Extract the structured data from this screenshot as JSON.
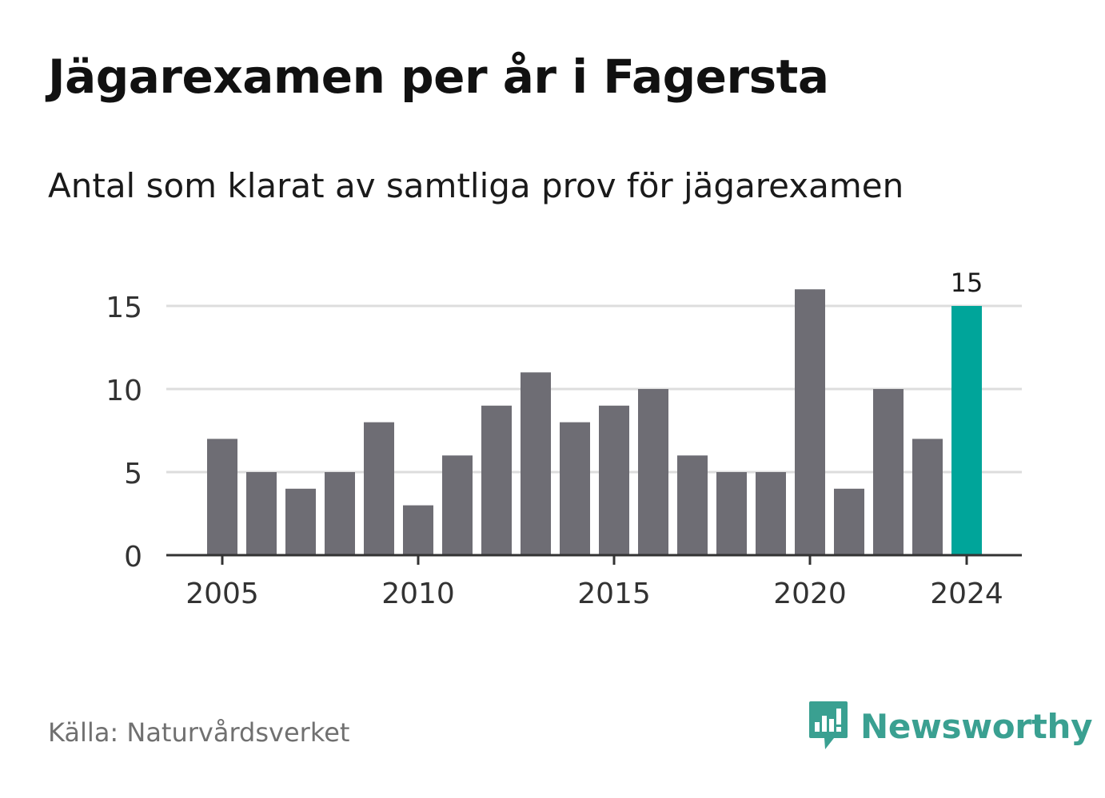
{
  "title": "Jägarexamen per år i Fagersta",
  "subtitle": "Antal som klarat av samtliga prov för jägarexamen",
  "source": "Källa: Naturvårdsverket",
  "brand": {
    "name": "Newsworthy",
    "icon": "newsworthy-chart-bubble-icon"
  },
  "colors": {
    "bar": "#6e6d74",
    "highlight": "#00a59a",
    "grid": "#dddddd",
    "axis": "#333333",
    "brand": "#3aa091"
  },
  "chart_data": {
    "type": "bar",
    "categories": [
      2005,
      2006,
      2007,
      2008,
      2009,
      2010,
      2011,
      2012,
      2013,
      2014,
      2015,
      2016,
      2017,
      2018,
      2019,
      2020,
      2021,
      2022,
      2023,
      2024
    ],
    "values": [
      7,
      5,
      4,
      5,
      8,
      3,
      6,
      9,
      11,
      8,
      9,
      10,
      6,
      5,
      5,
      16,
      4,
      10,
      7,
      15
    ],
    "highlight_category": 2024,
    "data_labels": [
      {
        "category": 2024,
        "label": "15"
      }
    ],
    "x_ticks": [
      "2005",
      "2010",
      "2015",
      "2020",
      "2024"
    ],
    "y_ticks": [
      "0",
      "5",
      "10",
      "15"
    ],
    "ylim": [
      0,
      16
    ],
    "grid": true,
    "legend": "none"
  }
}
